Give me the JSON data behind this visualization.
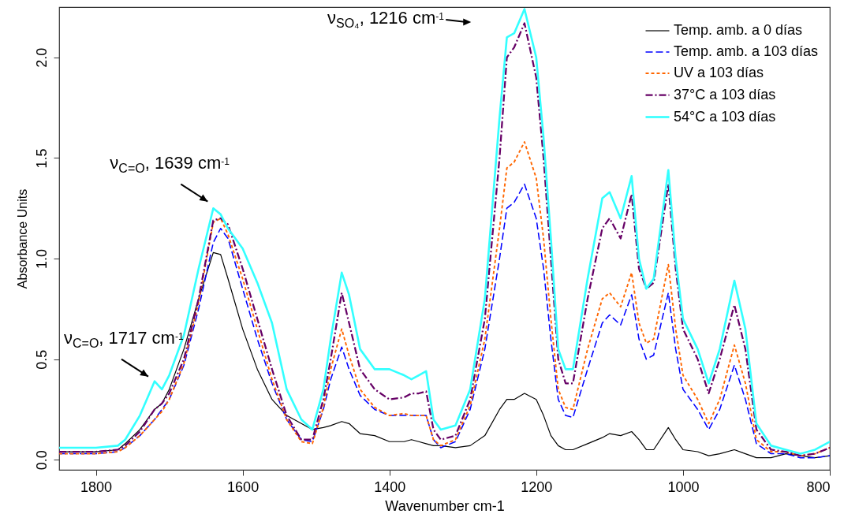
{
  "chart_data": {
    "type": "line",
    "xlabel": "Wavenumber cm-1",
    "ylabel": "Absorbance Units",
    "xlim": [
      1850,
      800
    ],
    "xticks": [
      1800,
      1600,
      1400,
      1200,
      1000,
      800
    ],
    "ylim": [
      -0.05,
      2.25
    ],
    "yticks": [
      {
        "value": 0,
        "label": "0.0"
      },
      {
        "value": 0.5,
        "label": "0.5"
      },
      {
        "value": 1,
        "label": "1.0"
      },
      {
        "value": 1.5,
        "label": "1.5"
      },
      {
        "value": 2,
        "label": "2.0"
      }
    ],
    "grid": false,
    "legend": "top right",
    "x": [
      1850,
      1800,
      1770,
      1760,
      1740,
      1720,
      1710,
      1700,
      1680,
      1660,
      1640,
      1630,
      1620,
      1600,
      1580,
      1560,
      1540,
      1520,
      1505,
      1490,
      1480,
      1465,
      1455,
      1440,
      1420,
      1400,
      1380,
      1370,
      1360,
      1350,
      1340,
      1330,
      1310,
      1290,
      1270,
      1250,
      1240,
      1230,
      1216,
      1200,
      1190,
      1180,
      1170,
      1160,
      1150,
      1130,
      1110,
      1100,
      1085,
      1070,
      1060,
      1050,
      1040,
      1020,
      1010,
      1000,
      980,
      965,
      950,
      930,
      915,
      900,
      880,
      860,
      840,
      820,
      800
    ],
    "series": [
      {
        "name": "Temp. amb. a 0 días",
        "color": "#000000",
        "line_style": "solid",
        "values": [
          0.04,
          0.04,
          0.05,
          0.08,
          0.15,
          0.25,
          0.28,
          0.35,
          0.55,
          0.8,
          1.03,
          1.02,
          0.9,
          0.65,
          0.45,
          0.3,
          0.22,
          0.18,
          0.15,
          0.16,
          0.17,
          0.19,
          0.18,
          0.13,
          0.12,
          0.09,
          0.09,
          0.1,
          0.09,
          0.08,
          0.07,
          0.07,
          0.06,
          0.07,
          0.12,
          0.25,
          0.3,
          0.3,
          0.33,
          0.3,
          0.22,
          0.12,
          0.07,
          0.05,
          0.05,
          0.08,
          0.11,
          0.13,
          0.12,
          0.14,
          0.1,
          0.05,
          0.05,
          0.16,
          0.1,
          0.05,
          0.04,
          0.02,
          0.03,
          0.05,
          0.03,
          0.01,
          0.01,
          0.03,
          0.02,
          0.01,
          0.02
        ]
      },
      {
        "name": "Temp. amb. a 103 días",
        "color": "#0000ff",
        "line_style": "dashed",
        "values": [
          0.03,
          0.03,
          0.04,
          0.06,
          0.12,
          0.2,
          0.25,
          0.3,
          0.47,
          0.75,
          1.08,
          1.15,
          1.1,
          0.85,
          0.6,
          0.38,
          0.2,
          0.1,
          0.09,
          0.25,
          0.4,
          0.56,
          0.45,
          0.32,
          0.25,
          0.22,
          0.22,
          0.22,
          0.22,
          0.22,
          0.1,
          0.06,
          0.09,
          0.25,
          0.55,
          1.0,
          1.25,
          1.28,
          1.37,
          1.2,
          0.95,
          0.6,
          0.3,
          0.22,
          0.21,
          0.45,
          0.68,
          0.72,
          0.67,
          0.82,
          0.6,
          0.5,
          0.52,
          0.83,
          0.55,
          0.35,
          0.25,
          0.15,
          0.25,
          0.47,
          0.3,
          0.08,
          0.03,
          0.03,
          0.01,
          0.01,
          0.02
        ]
      },
      {
        "name": "UV a 103 días",
        "color": "#ff6600",
        "line_style": "dotted",
        "values": [
          0.03,
          0.03,
          0.04,
          0.06,
          0.12,
          0.2,
          0.24,
          0.3,
          0.48,
          0.78,
          1.18,
          1.2,
          1.12,
          0.9,
          0.65,
          0.4,
          0.2,
          0.09,
          0.08,
          0.26,
          0.45,
          0.65,
          0.52,
          0.35,
          0.26,
          0.22,
          0.23,
          0.22,
          0.22,
          0.22,
          0.1,
          0.07,
          0.1,
          0.27,
          0.6,
          1.15,
          1.45,
          1.48,
          1.58,
          1.4,
          1.1,
          0.7,
          0.35,
          0.26,
          0.25,
          0.55,
          0.8,
          0.83,
          0.76,
          0.93,
          0.68,
          0.58,
          0.6,
          0.97,
          0.65,
          0.42,
          0.3,
          0.18,
          0.3,
          0.57,
          0.38,
          0.1,
          0.04,
          0.04,
          0.02,
          0.03,
          0.06
        ]
      },
      {
        "name": "37°C a 103 días",
        "color": "#660066",
        "line_style": "dashdot",
        "values": [
          0.04,
          0.04,
          0.05,
          0.07,
          0.14,
          0.25,
          0.28,
          0.33,
          0.5,
          0.8,
          1.19,
          1.2,
          1.17,
          0.95,
          0.7,
          0.45,
          0.22,
          0.1,
          0.1,
          0.3,
          0.5,
          0.83,
          0.68,
          0.45,
          0.35,
          0.3,
          0.31,
          0.33,
          0.33,
          0.34,
          0.15,
          0.1,
          0.12,
          0.3,
          0.7,
          1.5,
          2.0,
          2.05,
          2.17,
          1.9,
          1.5,
          1.0,
          0.5,
          0.38,
          0.38,
          0.8,
          1.15,
          1.2,
          1.1,
          1.32,
          0.95,
          0.85,
          0.88,
          1.37,
          0.95,
          0.65,
          0.5,
          0.33,
          0.5,
          0.77,
          0.55,
          0.15,
          0.05,
          0.04,
          0.02,
          0.03,
          0.06
        ]
      },
      {
        "name": "54°C a 103 días",
        "color": "#33ffff",
        "line_style": "solid",
        "values": [
          0.06,
          0.06,
          0.07,
          0.1,
          0.22,
          0.39,
          0.35,
          0.42,
          0.62,
          0.95,
          1.25,
          1.22,
          1.15,
          1.05,
          0.88,
          0.68,
          0.35,
          0.2,
          0.15,
          0.35,
          0.6,
          0.93,
          0.82,
          0.55,
          0.45,
          0.45,
          0.42,
          0.4,
          0.42,
          0.44,
          0.2,
          0.15,
          0.17,
          0.35,
          0.8,
          1.7,
          2.1,
          2.12,
          2.24,
          2.0,
          1.6,
          1.1,
          0.55,
          0.45,
          0.45,
          0.9,
          1.3,
          1.33,
          1.2,
          1.41,
          1.0,
          0.85,
          0.9,
          1.44,
          1.0,
          0.7,
          0.55,
          0.38,
          0.55,
          0.89,
          0.65,
          0.18,
          0.07,
          0.05,
          0.03,
          0.05,
          0.09
        ]
      }
    ],
    "annotations": [
      {
        "text": "ν$_{C=O}$, 1639 cm$^{-1}$",
        "x": 1639,
        "y": 1.26
      },
      {
        "text": "ν$_{C=O}$, 1717 cm$^{-1}$",
        "x": 1720,
        "y": 0.39
      },
      "ν$_{SO₄}$, 1216 cm$^{-1}$"
    ]
  }
}
